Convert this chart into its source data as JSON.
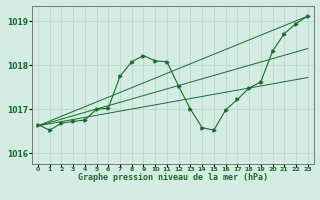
{
  "title": "Graphe pression niveau de la mer (hPa)",
  "bg_color": "#d4ece4",
  "line_color": "#1a6b2a",
  "grid_color": "#b8d8cc",
  "xlim": [
    -0.5,
    23.5
  ],
  "ylim": [
    1015.75,
    1019.35
  ],
  "yticks": [
    1016,
    1017,
    1018,
    1019
  ],
  "xticks": [
    0,
    1,
    2,
    3,
    4,
    5,
    6,
    7,
    8,
    9,
    10,
    11,
    12,
    13,
    14,
    15,
    16,
    17,
    18,
    19,
    20,
    21,
    22,
    23
  ],
  "series": [
    [
      0,
      1016.65
    ],
    [
      1,
      1016.52
    ],
    [
      2,
      1016.68
    ],
    [
      3,
      1016.72
    ],
    [
      4,
      1016.75
    ],
    [
      5,
      1017.0
    ],
    [
      6,
      1017.02
    ],
    [
      7,
      1017.75
    ],
    [
      8,
      1018.08
    ],
    [
      9,
      1018.22
    ],
    [
      10,
      1018.1
    ],
    [
      11,
      1018.08
    ],
    [
      12,
      1017.52
    ],
    [
      13,
      1017.0
    ],
    [
      14,
      1016.58
    ],
    [
      15,
      1016.52
    ],
    [
      16,
      1016.98
    ],
    [
      17,
      1017.22
    ],
    [
      18,
      1017.48
    ],
    [
      19,
      1017.62
    ],
    [
      20,
      1018.32
    ],
    [
      21,
      1018.72
    ],
    [
      22,
      1018.95
    ],
    [
      23,
      1019.12
    ]
  ],
  "trend_lines": [
    {
      "x": [
        0,
        23
      ],
      "y": [
        1016.62,
        1019.12
      ]
    },
    {
      "x": [
        0,
        23
      ],
      "y": [
        1016.62,
        1017.72
      ]
    },
    {
      "x": [
        0,
        23
      ],
      "y": [
        1016.62,
        1018.38
      ]
    }
  ]
}
